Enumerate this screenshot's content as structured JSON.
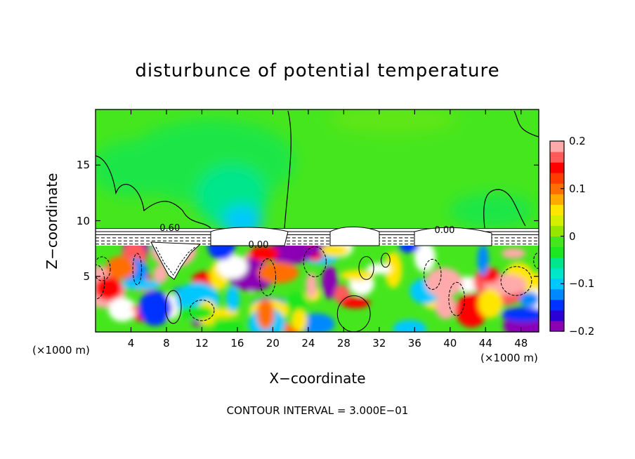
{
  "chart_data": {
    "type": "heatmap",
    "title": "disturbunce of potential temperature",
    "xlabel": "X−coordinate",
    "ylabel": "Z−coordinate",
    "x_unit_label": "(×1000 m)",
    "y_unit_label": "(×1000 m)",
    "footer": "CONTOUR INTERVAL = 3.000E−01",
    "xlim": [
      0,
      50
    ],
    "ylim": [
      0,
      20
    ],
    "x_ticks": [
      4,
      8,
      12,
      16,
      20,
      24,
      28,
      32,
      36,
      40,
      44,
      48
    ],
    "x_tick_labels": [
      "4",
      "8",
      "12",
      "16",
      "20",
      "24",
      "28",
      "32",
      "36",
      "40",
      "44",
      "48"
    ],
    "y_ticks": [
      5,
      10,
      15
    ],
    "y_tick_labels": [
      "5",
      "10",
      "15"
    ],
    "colorbar": {
      "range": [
        -0.2,
        0.2
      ],
      "ticks": [
        0.2,
        0.1,
        0,
        -0.1,
        -0.2
      ],
      "tick_labels": [
        "0.2",
        "0.1",
        "0",
        "−0.1",
        "−0.2"
      ],
      "colors": [
        "#8b00b4",
        "#2b00d6",
        "#0032ff",
        "#0088ff",
        "#00c8ff",
        "#00e6c8",
        "#00e68c",
        "#1ee61e",
        "#46e61e",
        "#96e600",
        "#d2f000",
        "#ffe600",
        "#ffaa00",
        "#ff6e00",
        "#ff3c00",
        "#ff0000",
        "#ff5a5a",
        "#ffaaaa"
      ]
    },
    "contour_labels": [
      {
        "text": "0.60",
        "x": 8.5,
        "z": 9.2
      },
      {
        "text": "0.00",
        "x": 18.5,
        "z": 7.7
      },
      {
        "text": "0.00",
        "x": 39.5,
        "z": 9.0
      }
    ],
    "background_field": {
      "upper_region_z": [
        9.3,
        20
      ],
      "approx_value_upper": 0.0,
      "band_z": [
        7.9,
        9.3
      ]
    }
  }
}
